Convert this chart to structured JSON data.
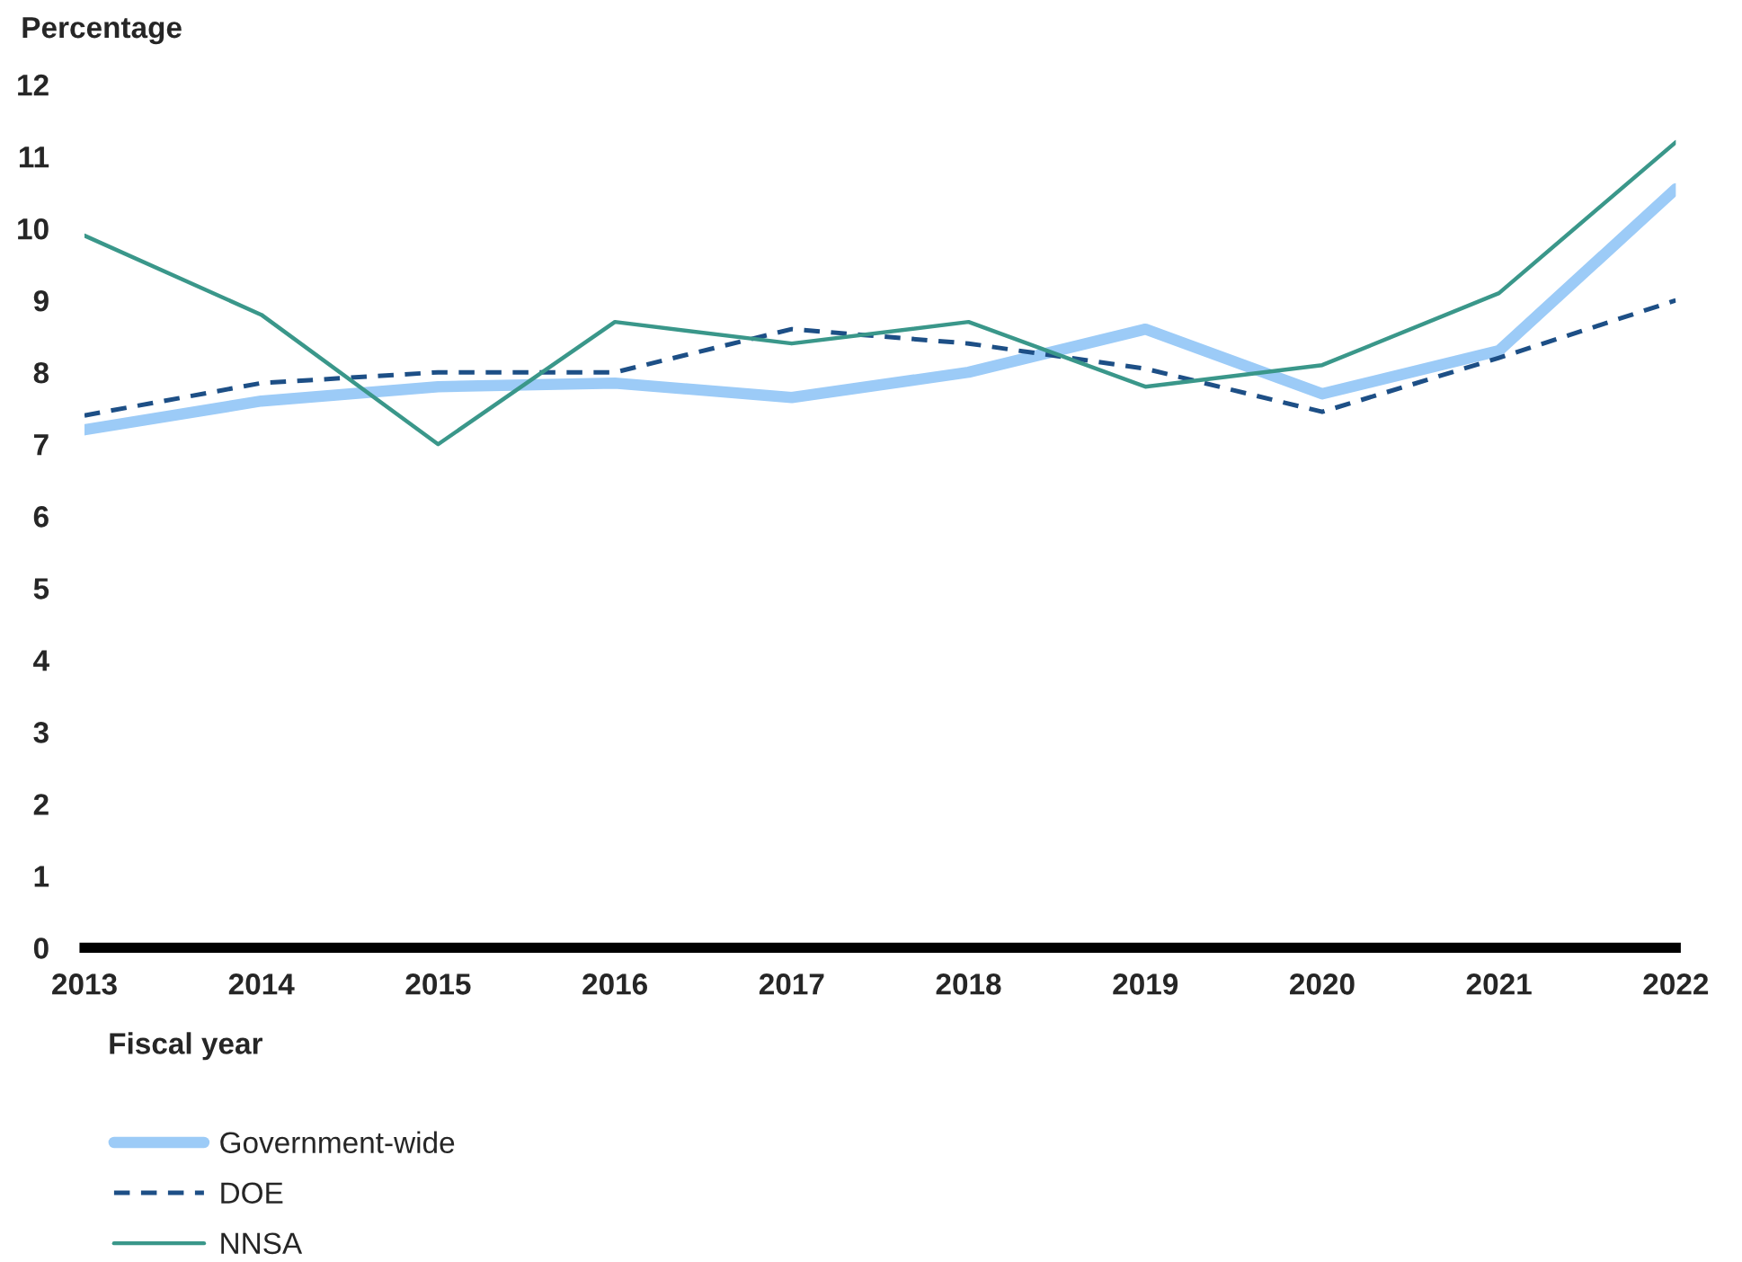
{
  "chart_data": {
    "type": "line",
    "ylabel": "Percentage",
    "xlabel": "Fiscal year",
    "x": [
      2013,
      2014,
      2015,
      2016,
      2017,
      2018,
      2019,
      2020,
      2021,
      2022
    ],
    "xlim": [
      2013,
      2022
    ],
    "xticks": [
      2013,
      2014,
      2015,
      2016,
      2017,
      2018,
      2019,
      2020,
      2021,
      2022
    ],
    "ylim": [
      0,
      12
    ],
    "yticks": [
      0,
      1,
      2,
      3,
      4,
      5,
      6,
      7,
      8,
      9,
      10,
      11,
      12
    ],
    "grid": false,
    "legend": "bottom left",
    "marker": "none",
    "series": [
      {
        "name": "Government-wide",
        "color": "#9ccbf7",
        "line_style": "solid",
        "values": [
          7.2,
          7.6,
          7.8,
          7.85,
          7.65,
          8.0,
          8.6,
          7.7,
          8.3,
          10.55
        ]
      },
      {
        "name": "DOE",
        "color": "#1d4f86",
        "line_style": "dashed",
        "values": [
          7.4,
          7.85,
          8.0,
          8.0,
          8.6,
          8.4,
          8.05,
          7.45,
          8.2,
          9.0
        ]
      },
      {
        "name": "NNSA",
        "color": "#3a978a",
        "line_style": "solid",
        "values": [
          9.9,
          8.8,
          7.0,
          8.7,
          8.4,
          8.7,
          7.8,
          8.1,
          9.1,
          11.2
        ]
      }
    ]
  }
}
